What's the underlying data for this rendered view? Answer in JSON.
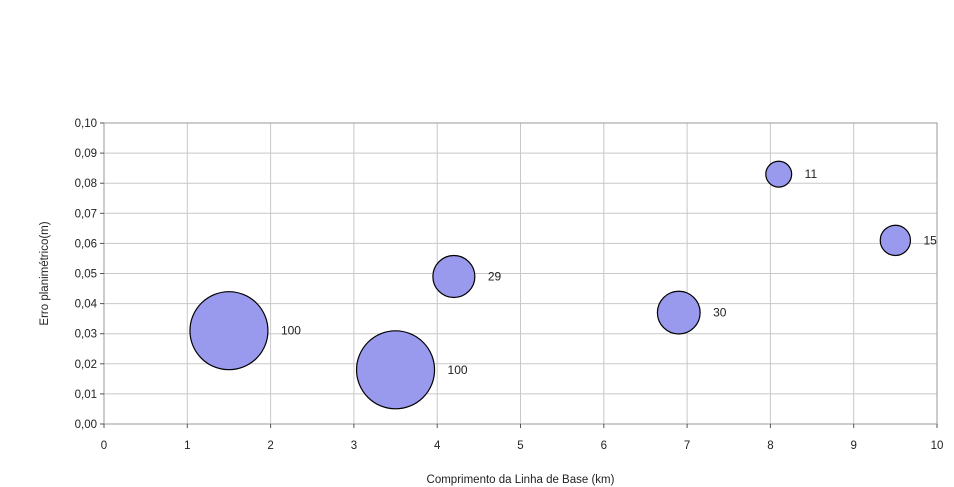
{
  "chart_data": {
    "type": "scatter",
    "variant": "bubble",
    "title": "",
    "xlabel": "Comprimento da Linha de Base (km)",
    "ylabel": "Erro planimétrico(m)",
    "xlim": [
      0,
      10
    ],
    "ylim": [
      0,
      0.1
    ],
    "x_ticks": [
      "0",
      "1",
      "2",
      "3",
      "4",
      "5",
      "6",
      "7",
      "8",
      "9",
      "10"
    ],
    "y_ticks": [
      "0,00",
      "0,01",
      "0,02",
      "0,03",
      "0,04",
      "0,05",
      "0,06",
      "0,07",
      "0,08",
      "0,09",
      "0,10"
    ],
    "grid": true,
    "legend": "none",
    "bubble_color": "#9999ee",
    "bubble_stroke": "#000000",
    "points": [
      {
        "x": 1.5,
        "y": 0.031,
        "size": 100,
        "label": "100"
      },
      {
        "x": 3.5,
        "y": 0.018,
        "size": 100,
        "label": "100"
      },
      {
        "x": 4.2,
        "y": 0.049,
        "size": 29,
        "label": "29"
      },
      {
        "x": 6.9,
        "y": 0.037,
        "size": 30,
        "label": "30"
      },
      {
        "x": 8.1,
        "y": 0.083,
        "size": 11,
        "label": "11"
      },
      {
        "x": 9.5,
        "y": 0.061,
        "size": 15,
        "label": "15"
      }
    ]
  }
}
